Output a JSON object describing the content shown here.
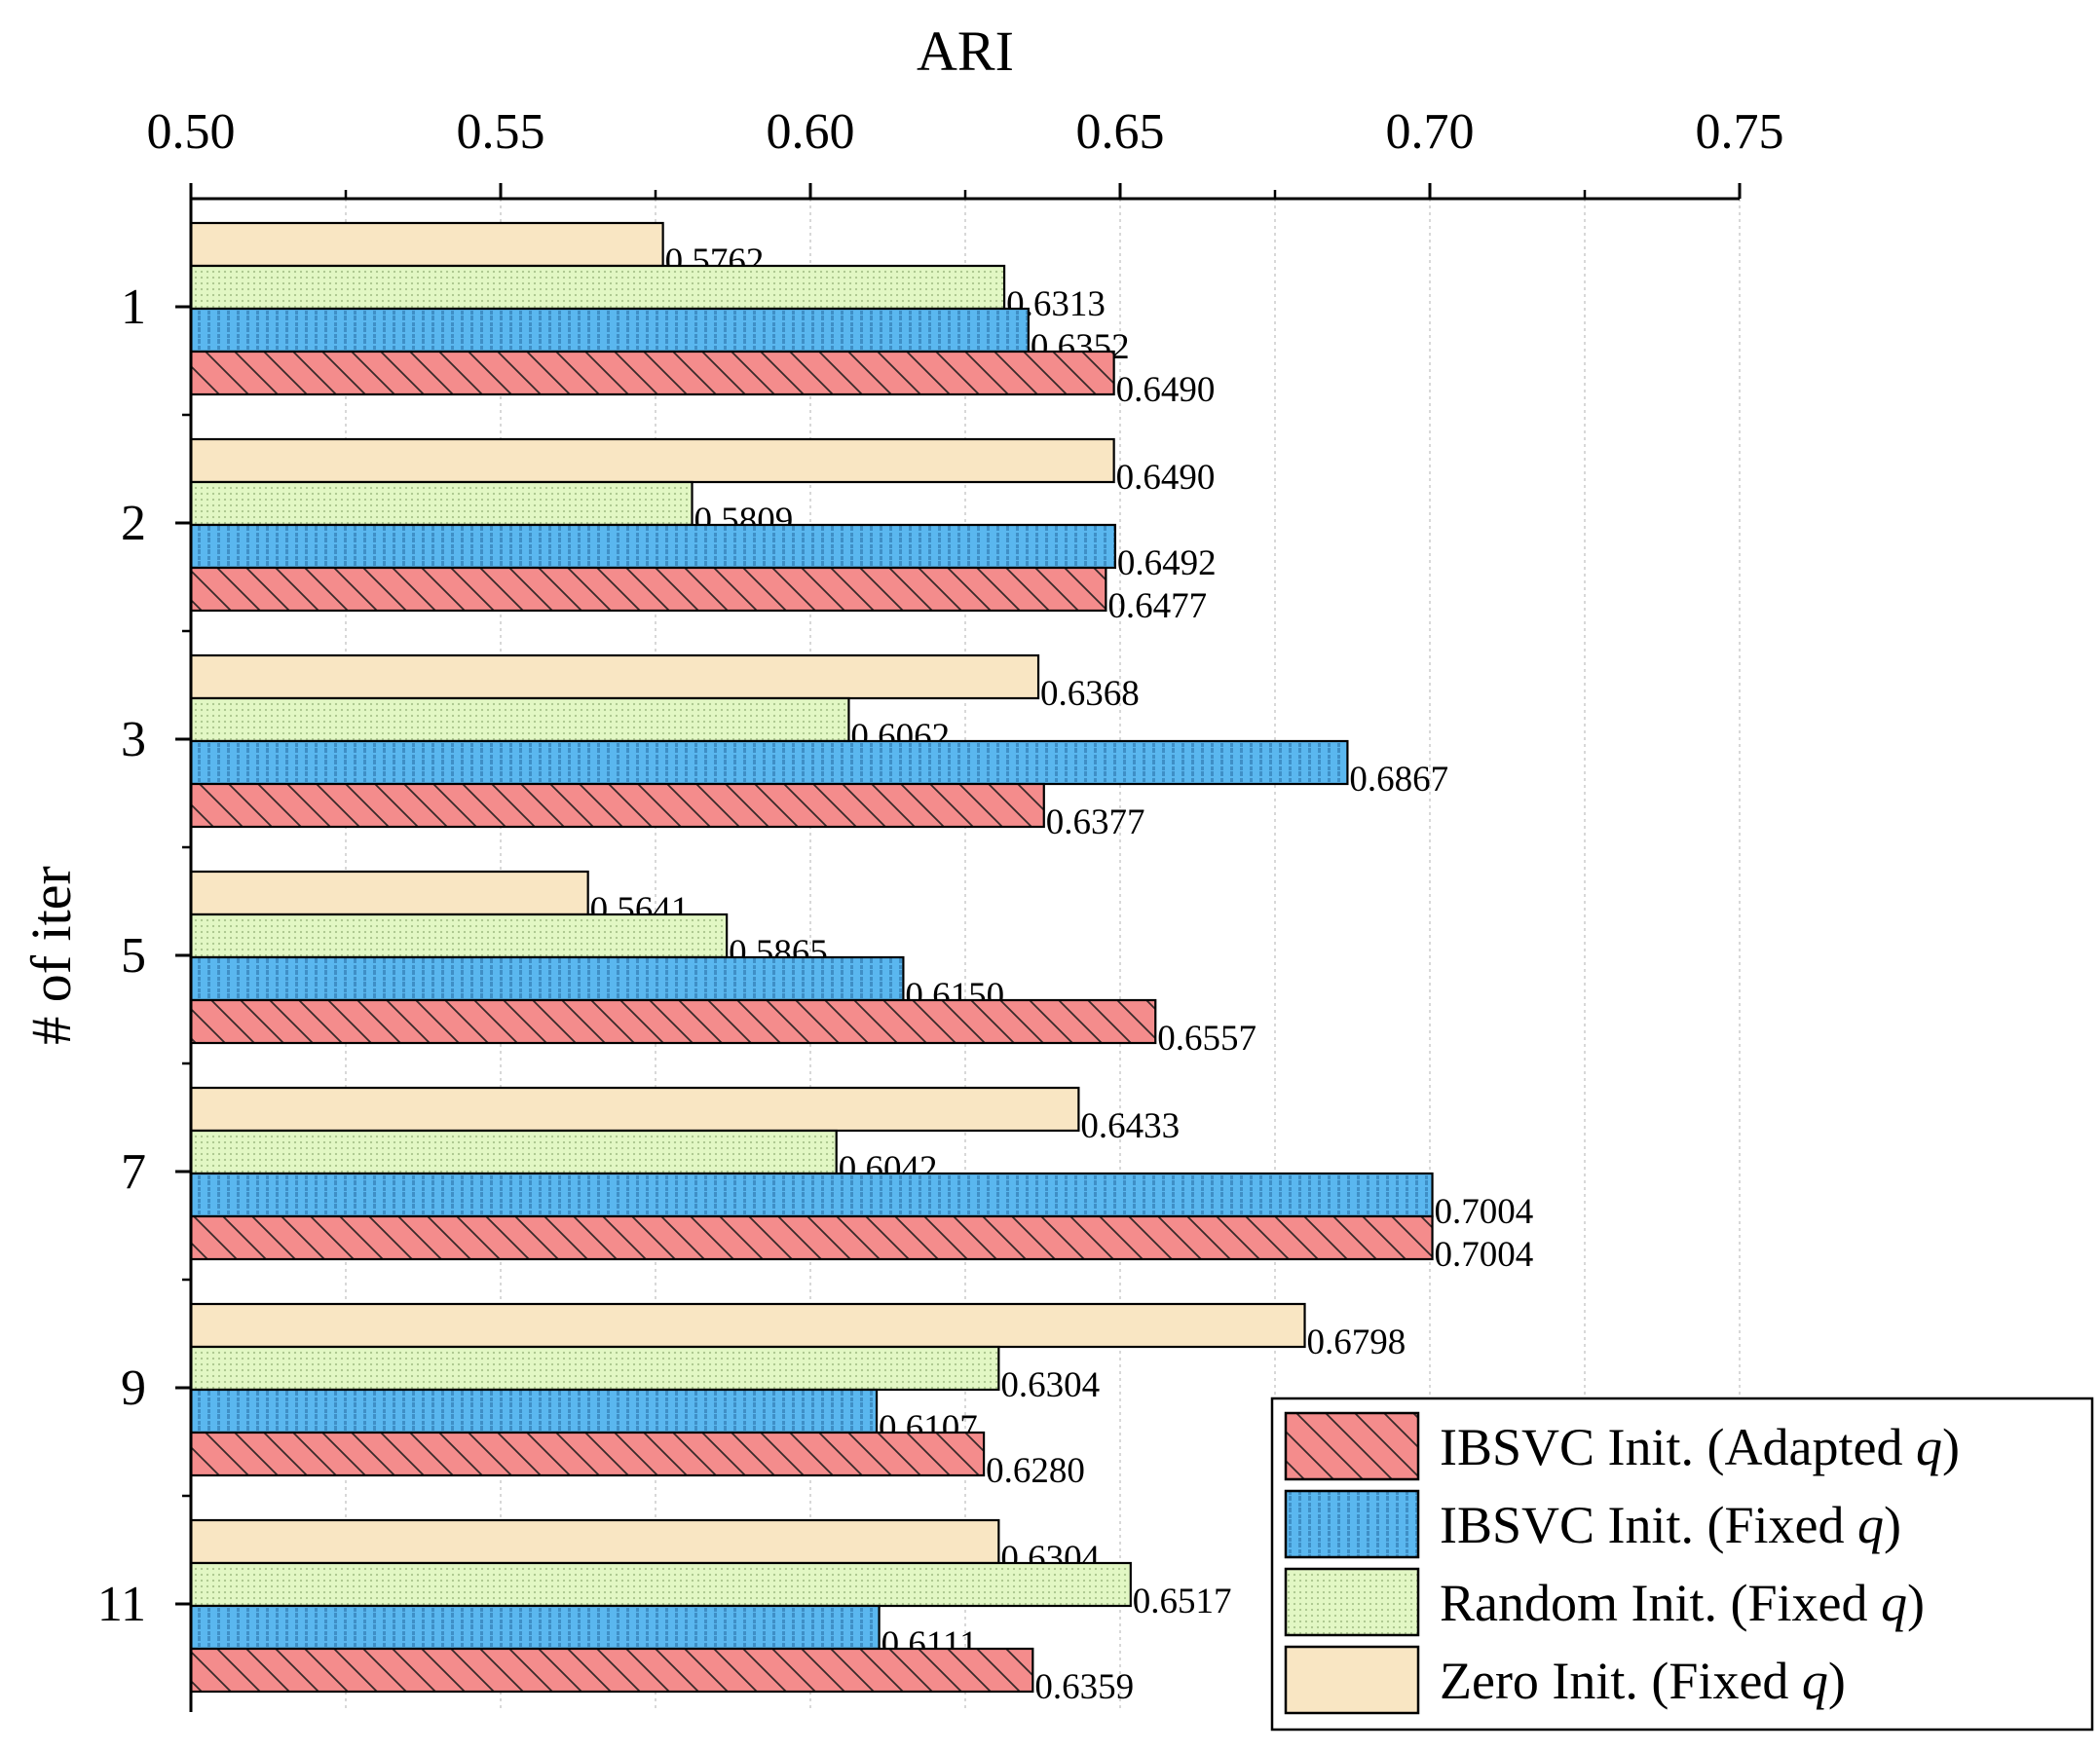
{
  "chart_data": {
    "type": "bar",
    "orientation": "horizontal",
    "xlabel": "ARI",
    "ylabel": "# of iter",
    "xlim": [
      0.5,
      0.75
    ],
    "xticks": [
      "0.50",
      "0.55",
      "0.60",
      "0.65",
      "0.70",
      "0.75"
    ],
    "categories": [
      "1",
      "2",
      "3",
      "5",
      "7",
      "9",
      "11"
    ],
    "grid": true,
    "legend_position": "bottom-right",
    "series": [
      {
        "name": "Zero Init. (Fixed q)",
        "label_prefix": "Zero Init. (Fixed ",
        "label_q": "q",
        "label_suffix": ")",
        "color": "#f9e6c3",
        "pattern": "none",
        "values": [
          0.5762,
          0.649,
          0.6368,
          0.5641,
          0.6433,
          0.6798,
          0.6304
        ],
        "labels": [
          "0.5762",
          "0.6490",
          "0.6368",
          "0.5641",
          "0.6433",
          "0.6798",
          "0.6304"
        ]
      },
      {
        "name": "Random Init. (Fixed q)",
        "label_prefix": "Random Init. (Fixed ",
        "label_q": "q",
        "label_suffix": ")",
        "color": "#e2f7c4",
        "pattern": "dots",
        "values": [
          0.6313,
          0.5809,
          0.6062,
          0.5865,
          0.6042,
          0.6304,
          0.6517
        ],
        "labels": [
          "0.6313",
          "0.5809",
          "0.6062",
          "0.5865",
          "0.6042",
          "0.6304",
          "0.6517"
        ]
      },
      {
        "name": "IBSVC Init. (Fixed q)",
        "label_prefix": "IBSVC Init. (Fixed ",
        "label_q": "q",
        "label_suffix": ")",
        "color": "#5ab7ef",
        "pattern": "vlines",
        "values": [
          0.6352,
          0.6492,
          0.6867,
          0.615,
          0.7004,
          0.6107,
          0.6111
        ],
        "labels": [
          "0.6352",
          "0.6492",
          "0.6867",
          "0.6150",
          "0.7004",
          "0.6107",
          "0.6111"
        ]
      },
      {
        "name": "IBSVC Init. (Adapted q)",
        "label_prefix": "IBSVC Init. (Adapted ",
        "label_q": "q",
        "label_suffix": ")",
        "color": "#f48c8c",
        "pattern": "diag",
        "values": [
          0.649,
          0.6477,
          0.6377,
          0.6557,
          0.7004,
          0.628,
          0.6359
        ],
        "labels": [
          "0.6490",
          "0.6477",
          "0.6377",
          "0.6557",
          "0.7004",
          "0.6280",
          "0.6359"
        ]
      }
    ],
    "legend_order": [
      3,
      2,
      1,
      0
    ]
  }
}
